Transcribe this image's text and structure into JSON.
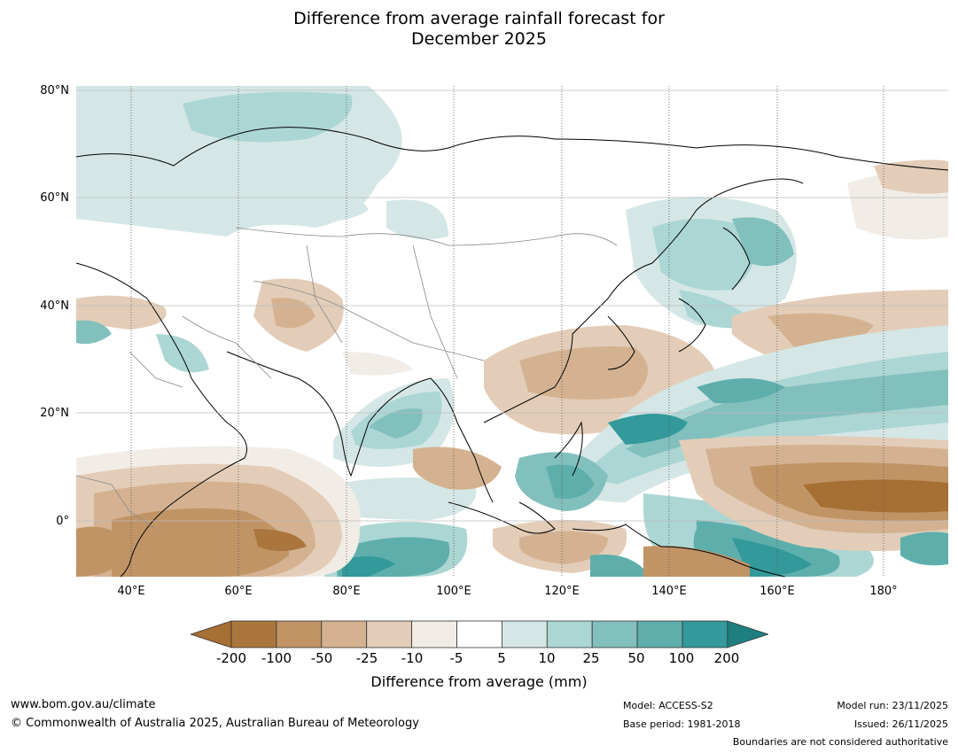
{
  "title_line1": "Difference from average rainfall forecast for",
  "title_line2": "December 2025",
  "lat_labels": [
    "80°N",
    "60°N",
    "40°N",
    "20°N",
    "0°"
  ],
  "lon_labels": [
    "40°E",
    "60°E",
    "80°E",
    "100°E",
    "120°E",
    "140°E",
    "160°E",
    "180°"
  ],
  "colorbar": {
    "label": "Difference from average (mm)",
    "ticks": [
      "-200",
      "-100",
      "-50",
      "-25",
      "-10",
      "-5",
      "5",
      "10",
      "25",
      "50",
      "100",
      "200"
    ],
    "colors": [
      "#a66f34",
      "#ab763d",
      "#c19466",
      "#d4b291",
      "#e3cdb8",
      "#f1ece6",
      "#ffffff",
      "#d4e7e6",
      "#acd6d4",
      "#82c0be",
      "#5eaeac",
      "#33999a",
      "#1f7f80"
    ]
  },
  "footer": {
    "website": "www.bom.gov.au/climate",
    "copyright": "© Commonwealth of Australia 2025, Australian Bureau of Meteorology",
    "model": "Model: ACCESS-S2",
    "base_period": "Base period: 1981-2018",
    "model_run": "Model run: 23/11/2025",
    "issued": "Issued: 26/11/2025",
    "disclaimer": "Boundaries are not considered authoritative"
  }
}
